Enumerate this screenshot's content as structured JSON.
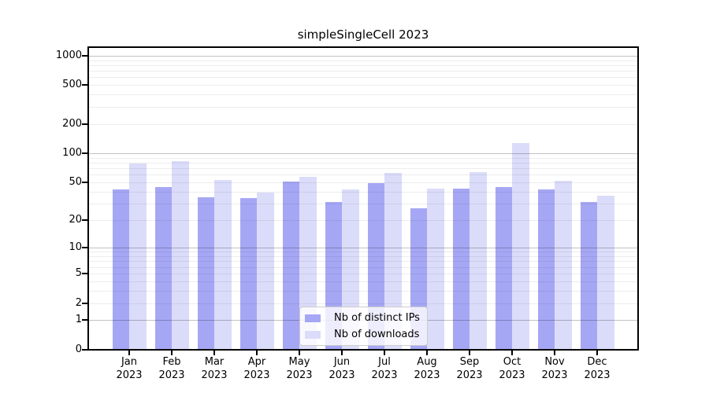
{
  "title": "simpleSingleCell 2023",
  "chart_data": {
    "type": "bar",
    "title": "simpleSingleCell 2023",
    "categories": [
      "Jan 2023",
      "Feb 2023",
      "Mar 2023",
      "Apr 2023",
      "May 2023",
      "Jun 2023",
      "Jul 2023",
      "Aug 2023",
      "Sep 2023",
      "Oct 2023",
      "Nov 2023",
      "Dec 2023"
    ],
    "month_labels": [
      "Jan",
      "Feb",
      "Mar",
      "Apr",
      "May",
      "Jun",
      "Jul",
      "Aug",
      "Sep",
      "Oct",
      "Nov",
      "Dec"
    ],
    "year_label": "2023",
    "series": [
      {
        "name": "Nb of distinct IPs",
        "key": "distinct-ips",
        "color": "#a6a7f4",
        "values": [
          42,
          45,
          35,
          34,
          51,
          31,
          49,
          27,
          43,
          45,
          42,
          31
        ]
      },
      {
        "name": "Nb of downloads",
        "key": "downloads",
        "color": "#dbdcf9",
        "values": [
          79,
          83,
          53,
          39,
          57,
          42,
          63,
          43,
          64,
          128,
          52,
          36
        ]
      }
    ],
    "y_axis": {
      "scale": "log1p",
      "tick_labels": [
        "1000",
        "500",
        "200",
        "100",
        "50",
        "20",
        "10",
        "5",
        "2",
        "1",
        "0"
      ],
      "tick_values": [
        1000,
        500,
        200,
        100,
        50,
        20,
        10,
        5,
        2,
        1,
        0
      ],
      "major_grid_values": [
        1,
        10,
        100,
        1000
      ],
      "minor_grid_values": [
        2,
        3,
        4,
        5,
        6,
        7,
        8,
        9,
        20,
        30,
        40,
        50,
        60,
        70,
        80,
        90,
        200,
        300,
        400,
        500,
        600,
        700,
        800,
        900
      ],
      "range": [
        0,
        1200
      ]
    },
    "legend": {
      "position": "lower center",
      "entries": [
        "Nb of distinct IPs",
        "Nb of downloads"
      ]
    },
    "grid": true
  }
}
